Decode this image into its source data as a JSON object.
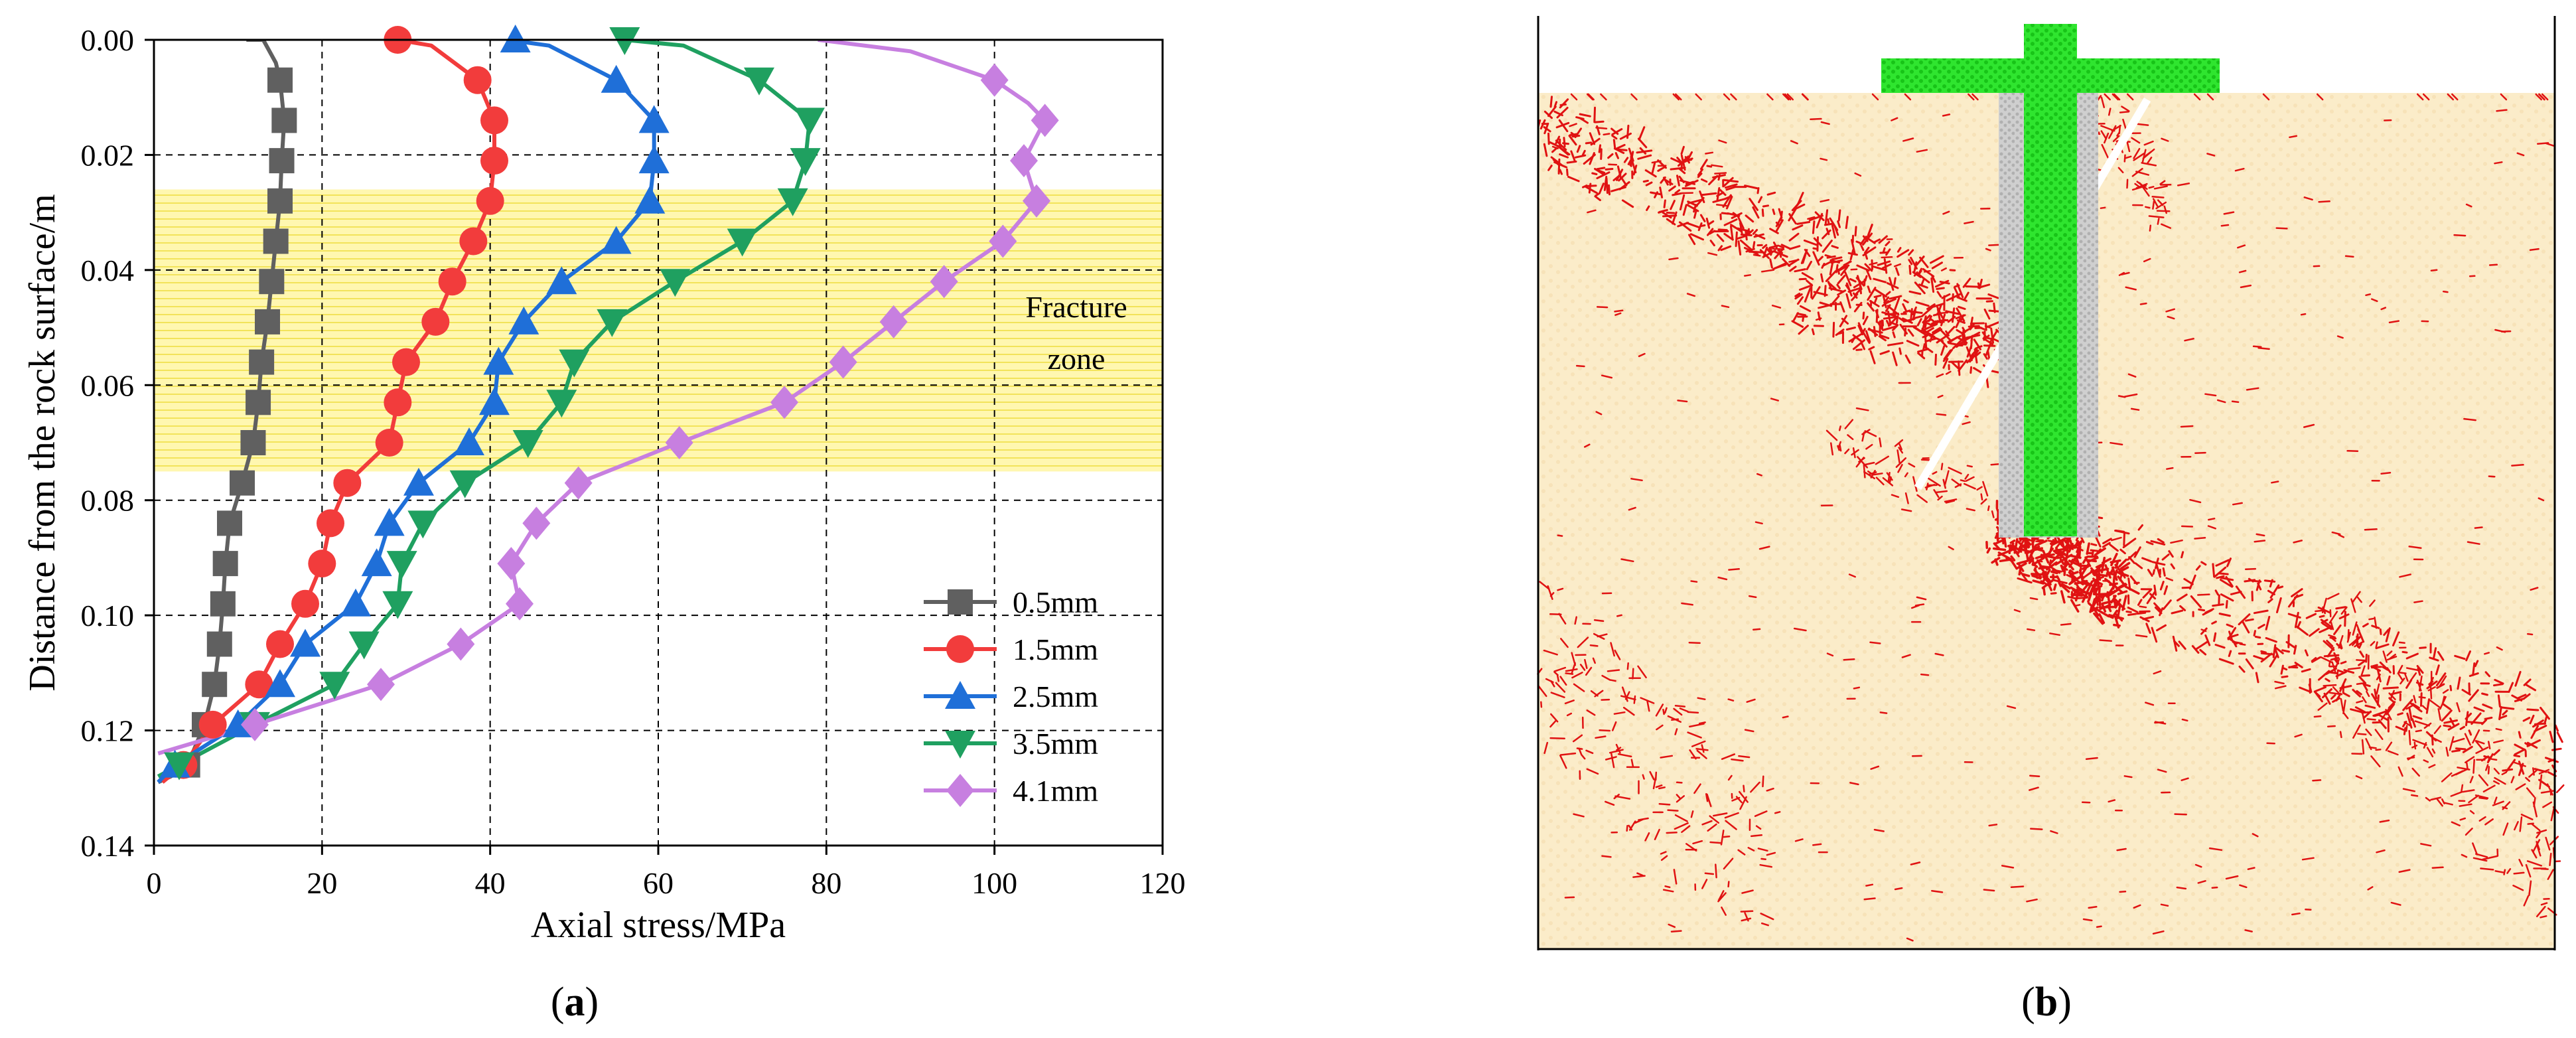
{
  "panel_a_label": "(a)",
  "panel_b_label": "(b)",
  "panel_a_letter": "a",
  "panel_b_letter": "b",
  "colors": {
    "0.5mm": "#606060",
    "1.5mm": "#f23c3c",
    "2.5mm": "#1f6fd8",
    "3.5mm": "#1fa060",
    "4.1mm": "#c77fe0",
    "fracture_zone": "#fff6a8",
    "rock": "#fbeccb",
    "crack": "#e01010",
    "bolt": "#2ee62e",
    "grout": "#c8c8c8"
  },
  "chart_data": {
    "type": "line",
    "title": "",
    "xlabel": "Axial stress/MPa",
    "ylabel": "Distance from the rock surface/m",
    "xlim": [
      0,
      120
    ],
    "ylim": [
      0.14,
      0.0
    ],
    "y_inverted": true,
    "xticks": [
      "0",
      "20",
      "40",
      "60",
      "80",
      "100",
      "120"
    ],
    "yticks": [
      "0.00",
      "0.02",
      "0.04",
      "0.06",
      "0.08",
      "0.10",
      "0.12",
      "0.14"
    ],
    "grid": "dashed",
    "legend_position": "bottom-right",
    "annotation": {
      "text_line1": "Fracture",
      "text_line2": "zone",
      "y_range": [
        0.026,
        0.075
      ]
    },
    "series": [
      {
        "name": "0.5mm",
        "marker": "square",
        "markers": [
          [
            15.0,
            0.007
          ],
          [
            15.5,
            0.014
          ],
          [
            15.2,
            0.021
          ],
          [
            15.0,
            0.028
          ],
          [
            14.5,
            0.035
          ],
          [
            14.0,
            0.042
          ],
          [
            13.5,
            0.049
          ],
          [
            12.8,
            0.056
          ],
          [
            12.4,
            0.063
          ],
          [
            11.8,
            0.07
          ],
          [
            10.5,
            0.077
          ],
          [
            9.0,
            0.084
          ],
          [
            8.5,
            0.091
          ],
          [
            8.2,
            0.098
          ],
          [
            7.8,
            0.105
          ],
          [
            7.2,
            0.112
          ],
          [
            6.0,
            0.119
          ],
          [
            4.0,
            0.126
          ]
        ],
        "line": [
          [
            11,
            0.0
          ],
          [
            13,
            0.0
          ],
          [
            14.5,
            0.004
          ],
          [
            15.0,
            0.007
          ],
          [
            15.5,
            0.014
          ],
          [
            15.2,
            0.021
          ],
          [
            15.0,
            0.028
          ],
          [
            14.5,
            0.035
          ],
          [
            14.0,
            0.042
          ],
          [
            13.5,
            0.049
          ],
          [
            12.8,
            0.056
          ],
          [
            12.4,
            0.063
          ],
          [
            11.8,
            0.07
          ],
          [
            10.5,
            0.077
          ],
          [
            9.0,
            0.084
          ],
          [
            8.5,
            0.091
          ],
          [
            8.2,
            0.098
          ],
          [
            7.8,
            0.105
          ],
          [
            7.2,
            0.112
          ],
          [
            6.0,
            0.119
          ],
          [
            4.0,
            0.126
          ],
          [
            2.0,
            0.128
          ],
          [
            0.5,
            0.129
          ]
        ]
      },
      {
        "name": "1.5mm",
        "marker": "circle",
        "markers": [
          [
            29.0,
            0.0
          ],
          [
            38.5,
            0.007
          ],
          [
            40.5,
            0.014
          ],
          [
            40.5,
            0.021
          ],
          [
            40.0,
            0.028
          ],
          [
            38.0,
            0.035
          ],
          [
            35.5,
            0.042
          ],
          [
            33.5,
            0.049
          ],
          [
            30.0,
            0.056
          ],
          [
            29.0,
            0.063
          ],
          [
            28.0,
            0.07
          ],
          [
            23.0,
            0.077
          ],
          [
            21.0,
            0.084
          ],
          [
            20.0,
            0.091
          ],
          [
            18.0,
            0.098
          ],
          [
            15.0,
            0.105
          ],
          [
            12.5,
            0.112
          ],
          [
            7.0,
            0.119
          ],
          [
            3.5,
            0.126
          ]
        ],
        "line": [
          [
            29.0,
            0.0
          ],
          [
            33,
            0.001
          ],
          [
            38.5,
            0.007
          ],
          [
            40.5,
            0.014
          ],
          [
            40.5,
            0.021
          ],
          [
            40.0,
            0.028
          ],
          [
            38.0,
            0.035
          ],
          [
            35.5,
            0.042
          ],
          [
            33.5,
            0.049
          ],
          [
            30.0,
            0.056
          ],
          [
            29.0,
            0.063
          ],
          [
            28.0,
            0.07
          ],
          [
            23.0,
            0.077
          ],
          [
            21.0,
            0.084
          ],
          [
            20.0,
            0.091
          ],
          [
            18.0,
            0.098
          ],
          [
            15.0,
            0.105
          ],
          [
            12.5,
            0.112
          ],
          [
            7.0,
            0.119
          ],
          [
            3.5,
            0.126
          ],
          [
            1.0,
            0.129
          ]
        ]
      },
      {
        "name": "2.5mm",
        "marker": "triangle-up",
        "markers": [
          [
            43.0,
            0.0
          ],
          [
            55.0,
            0.007
          ],
          [
            59.5,
            0.014
          ],
          [
            59.5,
            0.021
          ],
          [
            59.0,
            0.028
          ],
          [
            55.0,
            0.035
          ],
          [
            48.5,
            0.042
          ],
          [
            44.0,
            0.049
          ],
          [
            41.0,
            0.056
          ],
          [
            40.5,
            0.063
          ],
          [
            37.5,
            0.07
          ],
          [
            31.5,
            0.077
          ],
          [
            28.0,
            0.084
          ],
          [
            26.5,
            0.091
          ],
          [
            24.0,
            0.098
          ],
          [
            18.0,
            0.105
          ],
          [
            15.0,
            0.112
          ],
          [
            10.0,
            0.119
          ],
          [
            2.5,
            0.126
          ]
        ],
        "line": [
          [
            42.0,
            0.0
          ],
          [
            47,
            0.001
          ],
          [
            55.0,
            0.007
          ],
          [
            59.5,
            0.014
          ],
          [
            59.5,
            0.021
          ],
          [
            59.0,
            0.028
          ],
          [
            55.0,
            0.035
          ],
          [
            48.5,
            0.042
          ],
          [
            44.0,
            0.049
          ],
          [
            41.0,
            0.056
          ],
          [
            40.5,
            0.063
          ],
          [
            37.5,
            0.07
          ],
          [
            31.5,
            0.077
          ],
          [
            28.0,
            0.084
          ],
          [
            26.5,
            0.091
          ],
          [
            24.0,
            0.098
          ],
          [
            18.0,
            0.105
          ],
          [
            15.0,
            0.112
          ],
          [
            10.0,
            0.119
          ],
          [
            2.5,
            0.126
          ],
          [
            0.5,
            0.129
          ]
        ]
      },
      {
        "name": "3.5mm",
        "marker": "triangle-down",
        "markers": [
          [
            56.0,
            0.0
          ],
          [
            72.0,
            0.007
          ],
          [
            78.0,
            0.014
          ],
          [
            77.5,
            0.021
          ],
          [
            76.0,
            0.028
          ],
          [
            70.0,
            0.035
          ],
          [
            62.0,
            0.042
          ],
          [
            54.5,
            0.049
          ],
          [
            50.0,
            0.056
          ],
          [
            48.5,
            0.063
          ],
          [
            44.5,
            0.07
          ],
          [
            37.0,
            0.077
          ],
          [
            32.0,
            0.084
          ],
          [
            29.5,
            0.091
          ],
          [
            29.0,
            0.098
          ],
          [
            25.0,
            0.105
          ],
          [
            21.5,
            0.112
          ],
          [
            12.0,
            0.119
          ],
          [
            3.0,
            0.126
          ]
        ],
        "line": [
          [
            56.0,
            0.0
          ],
          [
            63,
            0.001
          ],
          [
            72.0,
            0.007
          ],
          [
            78.0,
            0.014
          ],
          [
            77.5,
            0.021
          ],
          [
            76.0,
            0.028
          ],
          [
            70.0,
            0.035
          ],
          [
            62.0,
            0.042
          ],
          [
            54.5,
            0.049
          ],
          [
            50.0,
            0.056
          ],
          [
            48.5,
            0.063
          ],
          [
            44.5,
            0.07
          ],
          [
            37.0,
            0.077
          ],
          [
            32.0,
            0.084
          ],
          [
            29.5,
            0.091
          ],
          [
            29.0,
            0.098
          ],
          [
            25.0,
            0.105
          ],
          [
            21.5,
            0.112
          ],
          [
            12.0,
            0.119
          ],
          [
            3.0,
            0.126
          ],
          [
            0.5,
            0.128
          ]
        ]
      },
      {
        "name": "4.1mm",
        "marker": "diamond",
        "markers": [
          [
            100.0,
            0.007
          ],
          [
            106.0,
            0.014
          ],
          [
            103.5,
            0.021
          ],
          [
            105.0,
            0.028
          ],
          [
            101.0,
            0.035
          ],
          [
            94.0,
            0.042
          ],
          [
            88.0,
            0.049
          ],
          [
            82.0,
            0.056
          ],
          [
            75.0,
            0.063
          ],
          [
            62.5,
            0.07
          ],
          [
            50.5,
            0.077
          ],
          [
            45.5,
            0.084
          ],
          [
            42.5,
            0.091
          ],
          [
            43.5,
            0.098
          ],
          [
            36.5,
            0.105
          ],
          [
            27.0,
            0.112
          ],
          [
            12.0,
            0.119
          ]
        ],
        "line": [
          [
            79,
            0.0
          ],
          [
            90,
            0.002
          ],
          [
            100.0,
            0.007
          ],
          [
            104,
            0.011
          ],
          [
            106.0,
            0.014
          ],
          [
            103.5,
            0.021
          ],
          [
            105.0,
            0.028
          ],
          [
            101.0,
            0.035
          ],
          [
            94.0,
            0.042
          ],
          [
            88.0,
            0.049
          ],
          [
            82.0,
            0.056
          ],
          [
            75.0,
            0.063
          ],
          [
            62.5,
            0.07
          ],
          [
            50.5,
            0.077
          ],
          [
            45.5,
            0.084
          ],
          [
            42.5,
            0.091
          ],
          [
            43.5,
            0.098
          ],
          [
            36.5,
            0.105
          ],
          [
            27.0,
            0.112
          ],
          [
            12.0,
            0.119
          ],
          [
            0.5,
            0.124
          ]
        ]
      }
    ]
  }
}
